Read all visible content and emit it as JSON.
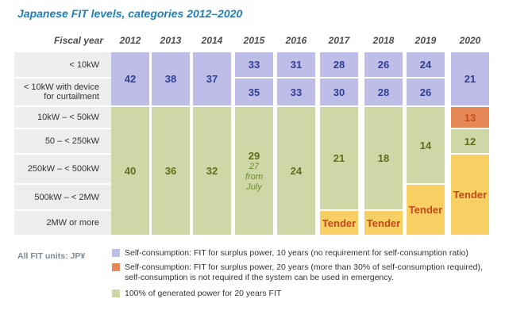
{
  "title": "Japanese FIT levels, categories 2012–2020",
  "header": {
    "fiscal_year_label": "Fiscal year"
  },
  "units_label": "All FIT units: JP¥",
  "colors": {
    "blue": "#bdbde8",
    "green": "#cdd8a6",
    "orange": "#e58856",
    "yellow": "#f8cf62"
  },
  "chart_data": {
    "type": "table",
    "years": [
      "2012",
      "2013",
      "2014",
      "2015",
      "2016",
      "2017",
      "2018",
      "2019",
      "2020"
    ],
    "categories": [
      "< 10kW",
      "< 10kW with device for curtailment",
      "10kW – < 50kW",
      "50 – < 250kW",
      "250kW – < 500kW",
      "500kW – < 2MW",
      "2MW or more"
    ],
    "category_lines": [
      [
        "< 10kW"
      ],
      [
        "< 10kW with device",
        "for curtailment"
      ],
      [
        "10kW – < 50kW"
      ],
      [
        "50 – < 250kW"
      ],
      [
        "250kW – < 500kW"
      ],
      [
        "500kW – < 2MW"
      ],
      [
        "2MW or more"
      ]
    ],
    "cells": [
      {
        "year": "2012",
        "from": 0,
        "to": 1,
        "text": "42",
        "color": "blue"
      },
      {
        "year": "2012",
        "from": 2,
        "to": 6,
        "text": "40",
        "color": "green"
      },
      {
        "year": "2013",
        "from": 0,
        "to": 1,
        "text": "38",
        "color": "blue"
      },
      {
        "year": "2013",
        "from": 2,
        "to": 6,
        "text": "36",
        "color": "green"
      },
      {
        "year": "2014",
        "from": 0,
        "to": 1,
        "text": "37",
        "color": "blue"
      },
      {
        "year": "2014",
        "from": 2,
        "to": 6,
        "text": "32",
        "color": "green"
      },
      {
        "year": "2015",
        "from": 0,
        "to": 0,
        "text": "33",
        "color": "blue"
      },
      {
        "year": "2015",
        "from": 1,
        "to": 1,
        "text": "35",
        "color": "blue"
      },
      {
        "year": "2015",
        "from": 2,
        "to": 6,
        "text": "29",
        "note": [
          "27",
          "from",
          "July"
        ],
        "color": "green"
      },
      {
        "year": "2016",
        "from": 0,
        "to": 0,
        "text": "31",
        "color": "blue"
      },
      {
        "year": "2016",
        "from": 1,
        "to": 1,
        "text": "33",
        "color": "blue"
      },
      {
        "year": "2016",
        "from": 2,
        "to": 6,
        "text": "24",
        "color": "green"
      },
      {
        "year": "2017",
        "from": 0,
        "to": 0,
        "text": "28",
        "color": "blue"
      },
      {
        "year": "2017",
        "from": 1,
        "to": 1,
        "text": "30",
        "color": "blue"
      },
      {
        "year": "2017",
        "from": 2,
        "to": 5,
        "text": "21",
        "color": "green"
      },
      {
        "year": "2017",
        "from": 6,
        "to": 6,
        "text": "Tender",
        "color": "yellow"
      },
      {
        "year": "2018",
        "from": 0,
        "to": 0,
        "text": "26",
        "color": "blue"
      },
      {
        "year": "2018",
        "from": 1,
        "to": 1,
        "text": "28",
        "color": "blue"
      },
      {
        "year": "2018",
        "from": 2,
        "to": 5,
        "text": "18",
        "color": "green"
      },
      {
        "year": "2018",
        "from": 6,
        "to": 6,
        "text": "Tender",
        "color": "yellow"
      },
      {
        "year": "2019",
        "from": 0,
        "to": 0,
        "text": "24",
        "color": "blue"
      },
      {
        "year": "2019",
        "from": 1,
        "to": 1,
        "text": "26",
        "color": "blue"
      },
      {
        "year": "2019",
        "from": 2,
        "to": 4,
        "text": "14",
        "color": "green"
      },
      {
        "year": "2019",
        "from": 5,
        "to": 6,
        "text": "Tender",
        "color": "yellow"
      },
      {
        "year": "2020",
        "from": 0,
        "to": 1,
        "text": "21",
        "color": "blue"
      },
      {
        "year": "2020",
        "from": 2,
        "to": 2,
        "text": "13",
        "color": "orange"
      },
      {
        "year": "2020",
        "from": 3,
        "to": 3,
        "text": "12",
        "color": "green"
      },
      {
        "year": "2020",
        "from": 4,
        "to": 6,
        "text": "Tender",
        "color": "yellow"
      }
    ],
    "legend": [
      {
        "color": "blue",
        "lines": [
          "Self-consumption: FIT for surplus power, 10 years (no requirement for self-consumption ratio)"
        ]
      },
      {
        "color": "orange",
        "lines": [
          "Self-consumption: FIT for surplus power, 20 years (more than 30% of self-consumption required),",
          "self-consumption is not required if the system can be used in emergency."
        ]
      },
      {
        "color": "green",
        "lines": [
          "100% of generated power for 20 years FIT"
        ]
      }
    ]
  }
}
